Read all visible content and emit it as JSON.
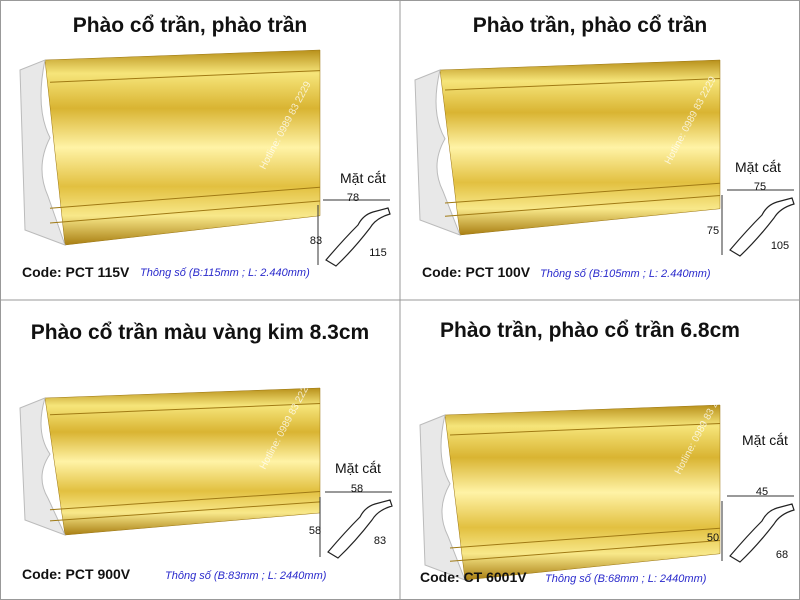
{
  "panels": [
    {
      "title": "Phào cổ trần, phào trần",
      "code": "Code: PCT 115V",
      "spec": "Thông số (B:115mm ; L: 2.440mm)",
      "section": "Mặt cắt",
      "dims": [
        "78",
        "83",
        "115"
      ],
      "hotline": "Hotline: 0989 83 2229"
    },
    {
      "title": "Phào trần, phào cổ trần",
      "code": "Code: PCT 100V",
      "spec": "Thông số (B:105mm ; L: 2.440mm)",
      "section": "Mặt cắt",
      "dims": [
        "75",
        "75",
        "105"
      ],
      "hotline": "Hotline: 0989 83 2229"
    },
    {
      "title": "Phào cổ trần màu vàng kim 8.3cm",
      "code": "Code: PCT 900V",
      "spec": "Thông số (B:83mm ; L: 2440mm)",
      "section": "Mặt cắt",
      "dims": [
        "58",
        "58",
        "83"
      ],
      "hotline": "Hotline: 0989 83 2229"
    },
    {
      "title": "Phào trần, phào cổ trần 6.8cm",
      "code": "Code: CT 6001V",
      "spec": "Thông số (B:68mm ; L: 2440mm)",
      "section": "Mặt cắt",
      "dims": [
        "45",
        "50",
        "68"
      ],
      "hotline": "Hotline: 0989 83 2229"
    }
  ]
}
